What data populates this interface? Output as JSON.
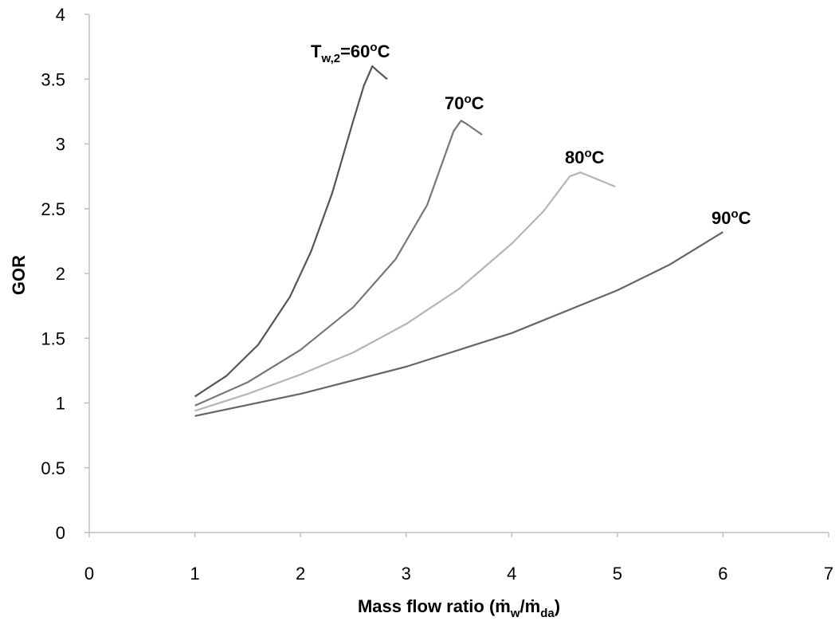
{
  "chart_data": {
    "type": "line",
    "title": "",
    "xlabel": "Mass flow ratio (",
    "xlabel_parts": {
      "m1": "ṁ",
      "sub1": "w",
      "slash": "/",
      "m2": "ṁ",
      "sub2": "da",
      "close": ")"
    },
    "ylabel": "GOR",
    "xlim": [
      0,
      7
    ],
    "ylim": [
      0,
      4
    ],
    "x_ticks": [
      "0",
      "1",
      "2",
      "3",
      "4",
      "5",
      "6",
      "7"
    ],
    "y_ticks": [
      "0",
      "0.5",
      "1",
      "1.5",
      "2",
      "2.5",
      "3",
      "3.5",
      "4"
    ],
    "grid": false,
    "legend": "none",
    "series": [
      {
        "name": "T",
        "label_parts": {
          "main": "T",
          "sub": "w,2",
          "eq": "=60",
          "sup": "o",
          "unit": "C"
        },
        "color": "#555555",
        "x": [
          1.0,
          1.3,
          1.6,
          1.9,
          2.1,
          2.3,
          2.5,
          2.6,
          2.68,
          2.72,
          2.82
        ],
        "y": [
          1.05,
          1.21,
          1.45,
          1.82,
          2.17,
          2.62,
          3.18,
          3.45,
          3.6,
          3.57,
          3.5
        ]
      },
      {
        "name": "70",
        "label_parts": {
          "main": "70",
          "sup": "o",
          "unit": "C"
        },
        "color": "#777777",
        "x": [
          1.0,
          1.5,
          2.0,
          2.5,
          2.9,
          3.2,
          3.45,
          3.52,
          3.58,
          3.72
        ],
        "y": [
          0.98,
          1.16,
          1.41,
          1.74,
          2.11,
          2.53,
          3.1,
          3.18,
          3.15,
          3.07
        ]
      },
      {
        "name": "80",
        "label_parts": {
          "main": "80",
          "sup": "o",
          "unit": "C"
        },
        "color": "#b5b5b5",
        "x": [
          1.0,
          1.5,
          2.0,
          2.5,
          3.0,
          3.5,
          4.0,
          4.3,
          4.55,
          4.65,
          4.98
        ],
        "y": [
          0.94,
          1.07,
          1.22,
          1.39,
          1.61,
          1.88,
          2.23,
          2.48,
          2.75,
          2.78,
          2.67
        ]
      },
      {
        "name": "90",
        "label_parts": {
          "main": "90",
          "sup": "o",
          "unit": "C"
        },
        "color": "#666666",
        "x": [
          1.0,
          2.0,
          3.0,
          4.0,
          5.0,
          5.5,
          6.0
        ],
        "y": [
          0.9,
          1.07,
          1.28,
          1.54,
          1.87,
          2.07,
          2.32
        ]
      }
    ]
  }
}
